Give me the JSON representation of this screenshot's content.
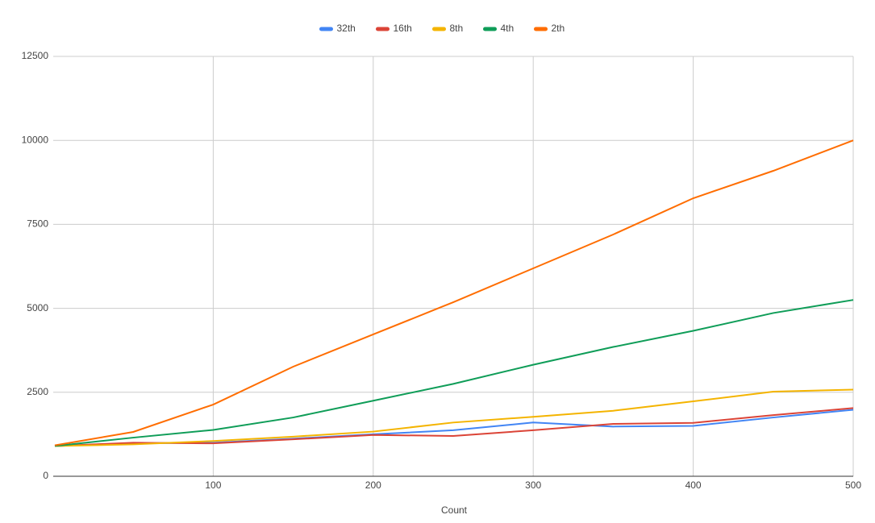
{
  "chart_data": {
    "type": "line",
    "x_label": "Count",
    "x": [
      1,
      50,
      100,
      150,
      200,
      250,
      300,
      350,
      400,
      450,
      500
    ],
    "series": [
      {
        "name": "32th",
        "color": "#4285f4",
        "values": [
          900,
          980,
          1000,
          1120,
          1250,
          1370,
          1600,
          1480,
          1500,
          1750,
          1980
        ]
      },
      {
        "name": "16th",
        "color": "#db4437",
        "values": [
          900,
          1000,
          980,
          1100,
          1230,
          1200,
          1370,
          1560,
          1590,
          1820,
          2030
        ]
      },
      {
        "name": "8th",
        "color": "#f4b400",
        "values": [
          900,
          950,
          1050,
          1180,
          1330,
          1600,
          1770,
          1950,
          2230,
          2520,
          2580
        ]
      },
      {
        "name": "4th",
        "color": "#0f9d58",
        "values": [
          900,
          1150,
          1380,
          1750,
          2250,
          2750,
          3320,
          3850,
          4330,
          4860,
          5250
        ]
      },
      {
        "name": "2th",
        "color": "#ff6d00",
        "values": [
          920,
          1320,
          2135,
          3263,
          4223,
          5182,
          6190,
          7198,
          8277,
          9093,
          10000
        ]
      }
    ],
    "xlim": [
      0,
      500
    ],
    "xticks": [
      100,
      200,
      300,
      400,
      500
    ],
    "ylim": [
      0,
      12500
    ],
    "yticks": [
      0,
      2500,
      5000,
      7500,
      10000,
      12500
    ],
    "grid": true
  }
}
